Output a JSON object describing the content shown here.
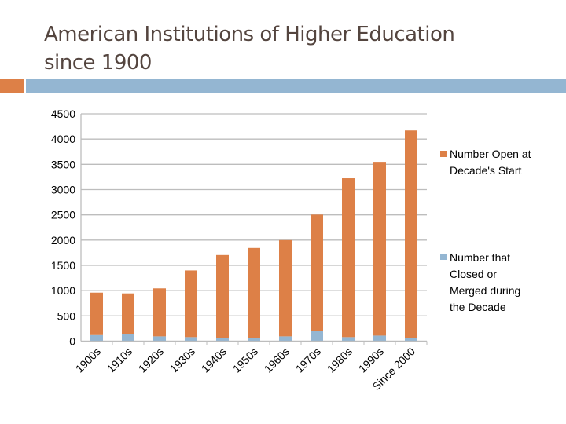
{
  "title_line1": "American Institutions of Higher Education",
  "title_line2": "since 1900",
  "chart_data": {
    "type": "bar",
    "stacked": true,
    "categories": [
      "1900s",
      "1910s",
      "1920s",
      "1930s",
      "1940s",
      "1950s",
      "1960s",
      "1970s",
      "1980s",
      "1990s",
      "Since 2000"
    ],
    "series": [
      {
        "name": "Number that Closed or Merged during the Decade",
        "color": "#94b6d2",
        "values": [
          120,
          145,
          95,
          80,
          60,
          60,
          95,
          200,
          80,
          110,
          60
        ]
      },
      {
        "name": "Number Open at Decade's Start",
        "color": "#dd8047",
        "values": [
          840,
          800,
          950,
          1320,
          1645,
          1785,
          1905,
          2305,
          3145,
          3440,
          4110
        ]
      }
    ],
    "yticks": [
      "0",
      "500",
      "1000",
      "1500",
      "2000",
      "2500",
      "3000",
      "3500",
      "4000",
      "4500"
    ],
    "ylim": [
      0,
      4500
    ],
    "grid": true,
    "legend_position": "right"
  }
}
